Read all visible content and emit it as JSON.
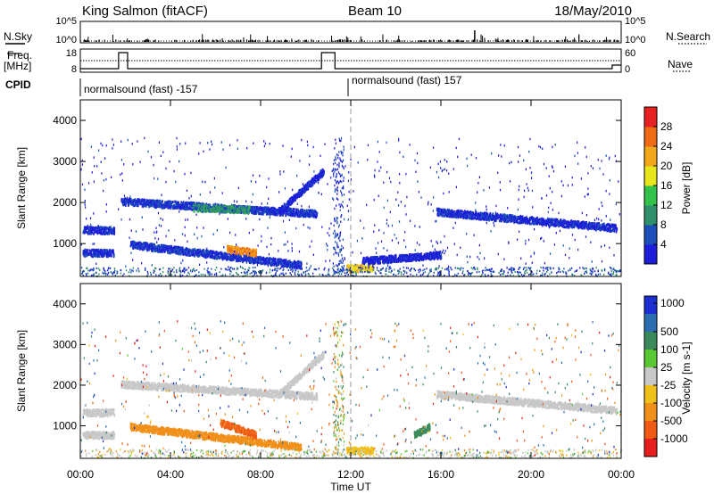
{
  "header": {
    "station": "King Salmon (fitACF)",
    "beam": "Beam 10",
    "date": "18/May/2010"
  },
  "status_panels": {
    "nsky_label": "N.Sky",
    "nsearch_label": "N.Search",
    "nsky_ticks": [
      "10^5",
      "10^0"
    ],
    "nsearch_ticks": [
      "10^5",
      "10^0"
    ],
    "freq_label_line1": "Freq.",
    "freq_label_line2": "[MHz]",
    "freq_ticks": [
      "18",
      "8"
    ],
    "nave_label": "Nave",
    "nave_ticks": [
      "60",
      "0"
    ],
    "cpid_label": "CPID",
    "cpid_segments": [
      {
        "start_hour": 0,
        "end_hour": 12,
        "label": "normalsound (fast) -157"
      },
      {
        "start_hour": 12,
        "end_hour": 24,
        "label": "normalsound (fast) 157"
      }
    ]
  },
  "chart_data": [
    {
      "type": "heatmap",
      "quantity": "Power",
      "ylabel": "Slant Range [km]",
      "xlabel": "Time UT",
      "xlim": [
        0,
        24
      ],
      "ylim": [
        200,
        4500
      ],
      "yticks": [
        "1000",
        "2000",
        "3000",
        "4000"
      ],
      "xticks": [
        "00:00",
        "04:00",
        "08:00",
        "12:00",
        "16:00",
        "20:00",
        "00:00"
      ],
      "colorbar": {
        "label": "Power [dB]",
        "ticks": [
          "4",
          "8",
          "12",
          "16",
          "20",
          "24",
          "28"
        ],
        "colors": [
          "#1c1cd9",
          "#1c4fb8",
          "#2f8f6a",
          "#35c24a",
          "#e6e61a",
          "#f0a81a",
          "#ef6a14",
          "#e62222"
        ]
      },
      "echo_bands": [
        {
          "t_start": 0.1,
          "t_end": 1.5,
          "range_start": 1350,
          "range_end": 1350,
          "level": 5
        },
        {
          "t_start": 0.1,
          "t_end": 1.5,
          "range_start": 800,
          "range_end": 800,
          "level": 5
        },
        {
          "t_start": 1.8,
          "t_end": 10.5,
          "range_start": 2050,
          "range_end": 1750,
          "level": 6
        },
        {
          "t_start": 5.0,
          "t_end": 7.5,
          "range_start": 1900,
          "range_end": 1850,
          "level": 12
        },
        {
          "t_start": 8.8,
          "t_end": 10.8,
          "range_start": 1800,
          "range_end": 2800,
          "level": 4
        },
        {
          "t_start": 2.2,
          "t_end": 9.8,
          "range_start": 1000,
          "range_end": 500,
          "level": 6
        },
        {
          "t_start": 6.5,
          "t_end": 7.8,
          "range_start": 900,
          "range_end": 800,
          "level": 26
        },
        {
          "t_start": 11.8,
          "t_end": 13.0,
          "range_start": 420,
          "range_end": 420,
          "level": 22
        },
        {
          "t_start": 15.8,
          "t_end": 23.8,
          "range_start": 1800,
          "range_end": 1400,
          "level": 5
        },
        {
          "t_start": 12.5,
          "t_end": 16.0,
          "range_start": 600,
          "range_end": 750,
          "level": 4
        }
      ]
    },
    {
      "type": "heatmap",
      "quantity": "Velocity",
      "ylabel": "Slant Range [km]",
      "xlabel": "Time UT",
      "xlim": [
        0,
        24
      ],
      "ylim": [
        200,
        4500
      ],
      "yticks": [
        "1000",
        "2000",
        "3000",
        "4000"
      ],
      "xticks": [
        "00:00",
        "04:00",
        "08:00",
        "12:00",
        "16:00",
        "20:00",
        "00:00"
      ],
      "colorbar": {
        "label": "Velocity [m s-1]",
        "ticks": [
          "1000",
          "500",
          "100",
          "25",
          "-25",
          "-100",
          "-500",
          "-1000"
        ],
        "colors": [
          "#1c2ed1",
          "#2c6db0",
          "#3a8a5c",
          "#5ac832",
          "#c8c8c8",
          "#f0c01a",
          "#f0901a",
          "#ef5a14",
          "#e61e1e"
        ]
      },
      "echo_bands": [
        {
          "t_start": 0.1,
          "t_end": 1.5,
          "range_start": 1350,
          "range_end": 1350,
          "level": 0
        },
        {
          "t_start": 0.1,
          "t_end": 1.5,
          "range_start": 800,
          "range_end": 800,
          "level": 0
        },
        {
          "t_start": 1.8,
          "t_end": 10.5,
          "range_start": 2050,
          "range_end": 1750,
          "level": 0
        },
        {
          "t_start": 8.8,
          "t_end": 10.8,
          "range_start": 1800,
          "range_end": 2800,
          "level": 0
        },
        {
          "t_start": 2.2,
          "t_end": 9.8,
          "range_start": 1000,
          "range_end": 500,
          "level": -150
        },
        {
          "t_start": 6.2,
          "t_end": 7.8,
          "range_start": 1100,
          "range_end": 800,
          "level": -600
        },
        {
          "t_start": 11.8,
          "t_end": 13.0,
          "range_start": 420,
          "range_end": 420,
          "level": -50
        },
        {
          "t_start": 15.8,
          "t_end": 23.8,
          "range_start": 1800,
          "range_end": 1400,
          "level": 0
        },
        {
          "t_start": 14.8,
          "t_end": 15.5,
          "range_start": 800,
          "range_end": 1000,
          "level": 200
        }
      ]
    }
  ]
}
